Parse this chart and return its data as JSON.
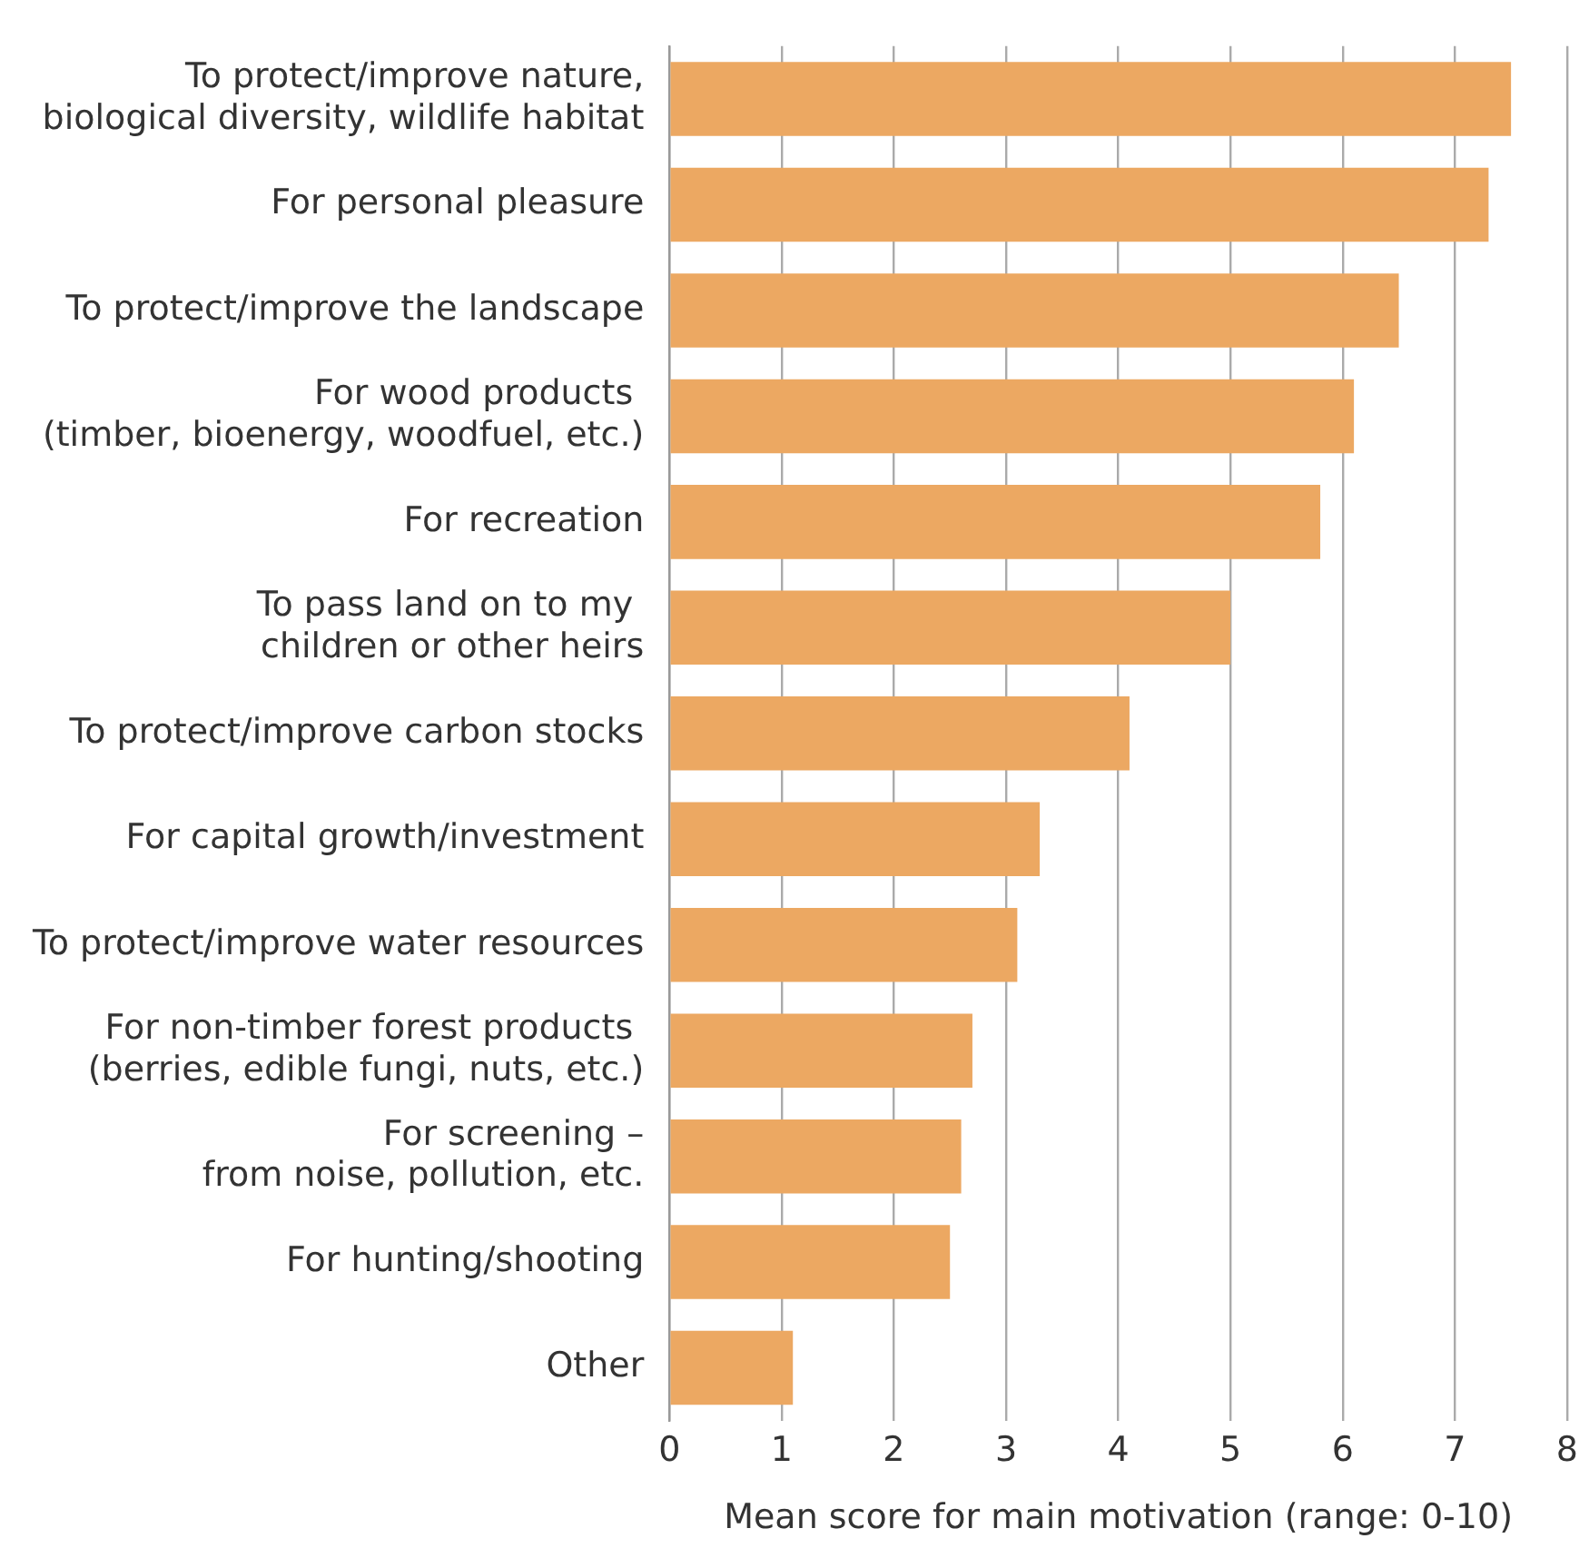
{
  "chart_data": {
    "type": "bar",
    "orientation": "horizontal",
    "xlabel": "Mean score for main motivation (range: 0-10)",
    "categories": [
      "To protect/improve nature,\nbiological diversity, wildlife habitat",
      "For personal pleasure",
      "To protect/improve the landscape",
      "For wood products \n(timber, bioenergy, woodfuel, etc.)",
      "For recreation",
      "To pass land on to my \nchildren or other heirs",
      "To protect/improve carbon stocks",
      "For capital growth/investment",
      "To protect/improve water resources",
      "For non-timber forest products \n(berries, edible fungi, nuts, etc.)",
      "For screening –\nfrom noise, pollution, etc.",
      "For hunting/shooting",
      "Other"
    ],
    "values": [
      7.5,
      7.3,
      6.5,
      6.1,
      5.8,
      5.0,
      4.1,
      3.3,
      3.1,
      2.7,
      2.6,
      2.5,
      1.1
    ],
    "color": "#eca862",
    "xlim": [
      0,
      8
    ],
    "xticks": [
      0,
      1,
      2,
      3,
      4,
      5,
      6,
      7,
      8
    ],
    "grid": "x",
    "legend": false
  }
}
